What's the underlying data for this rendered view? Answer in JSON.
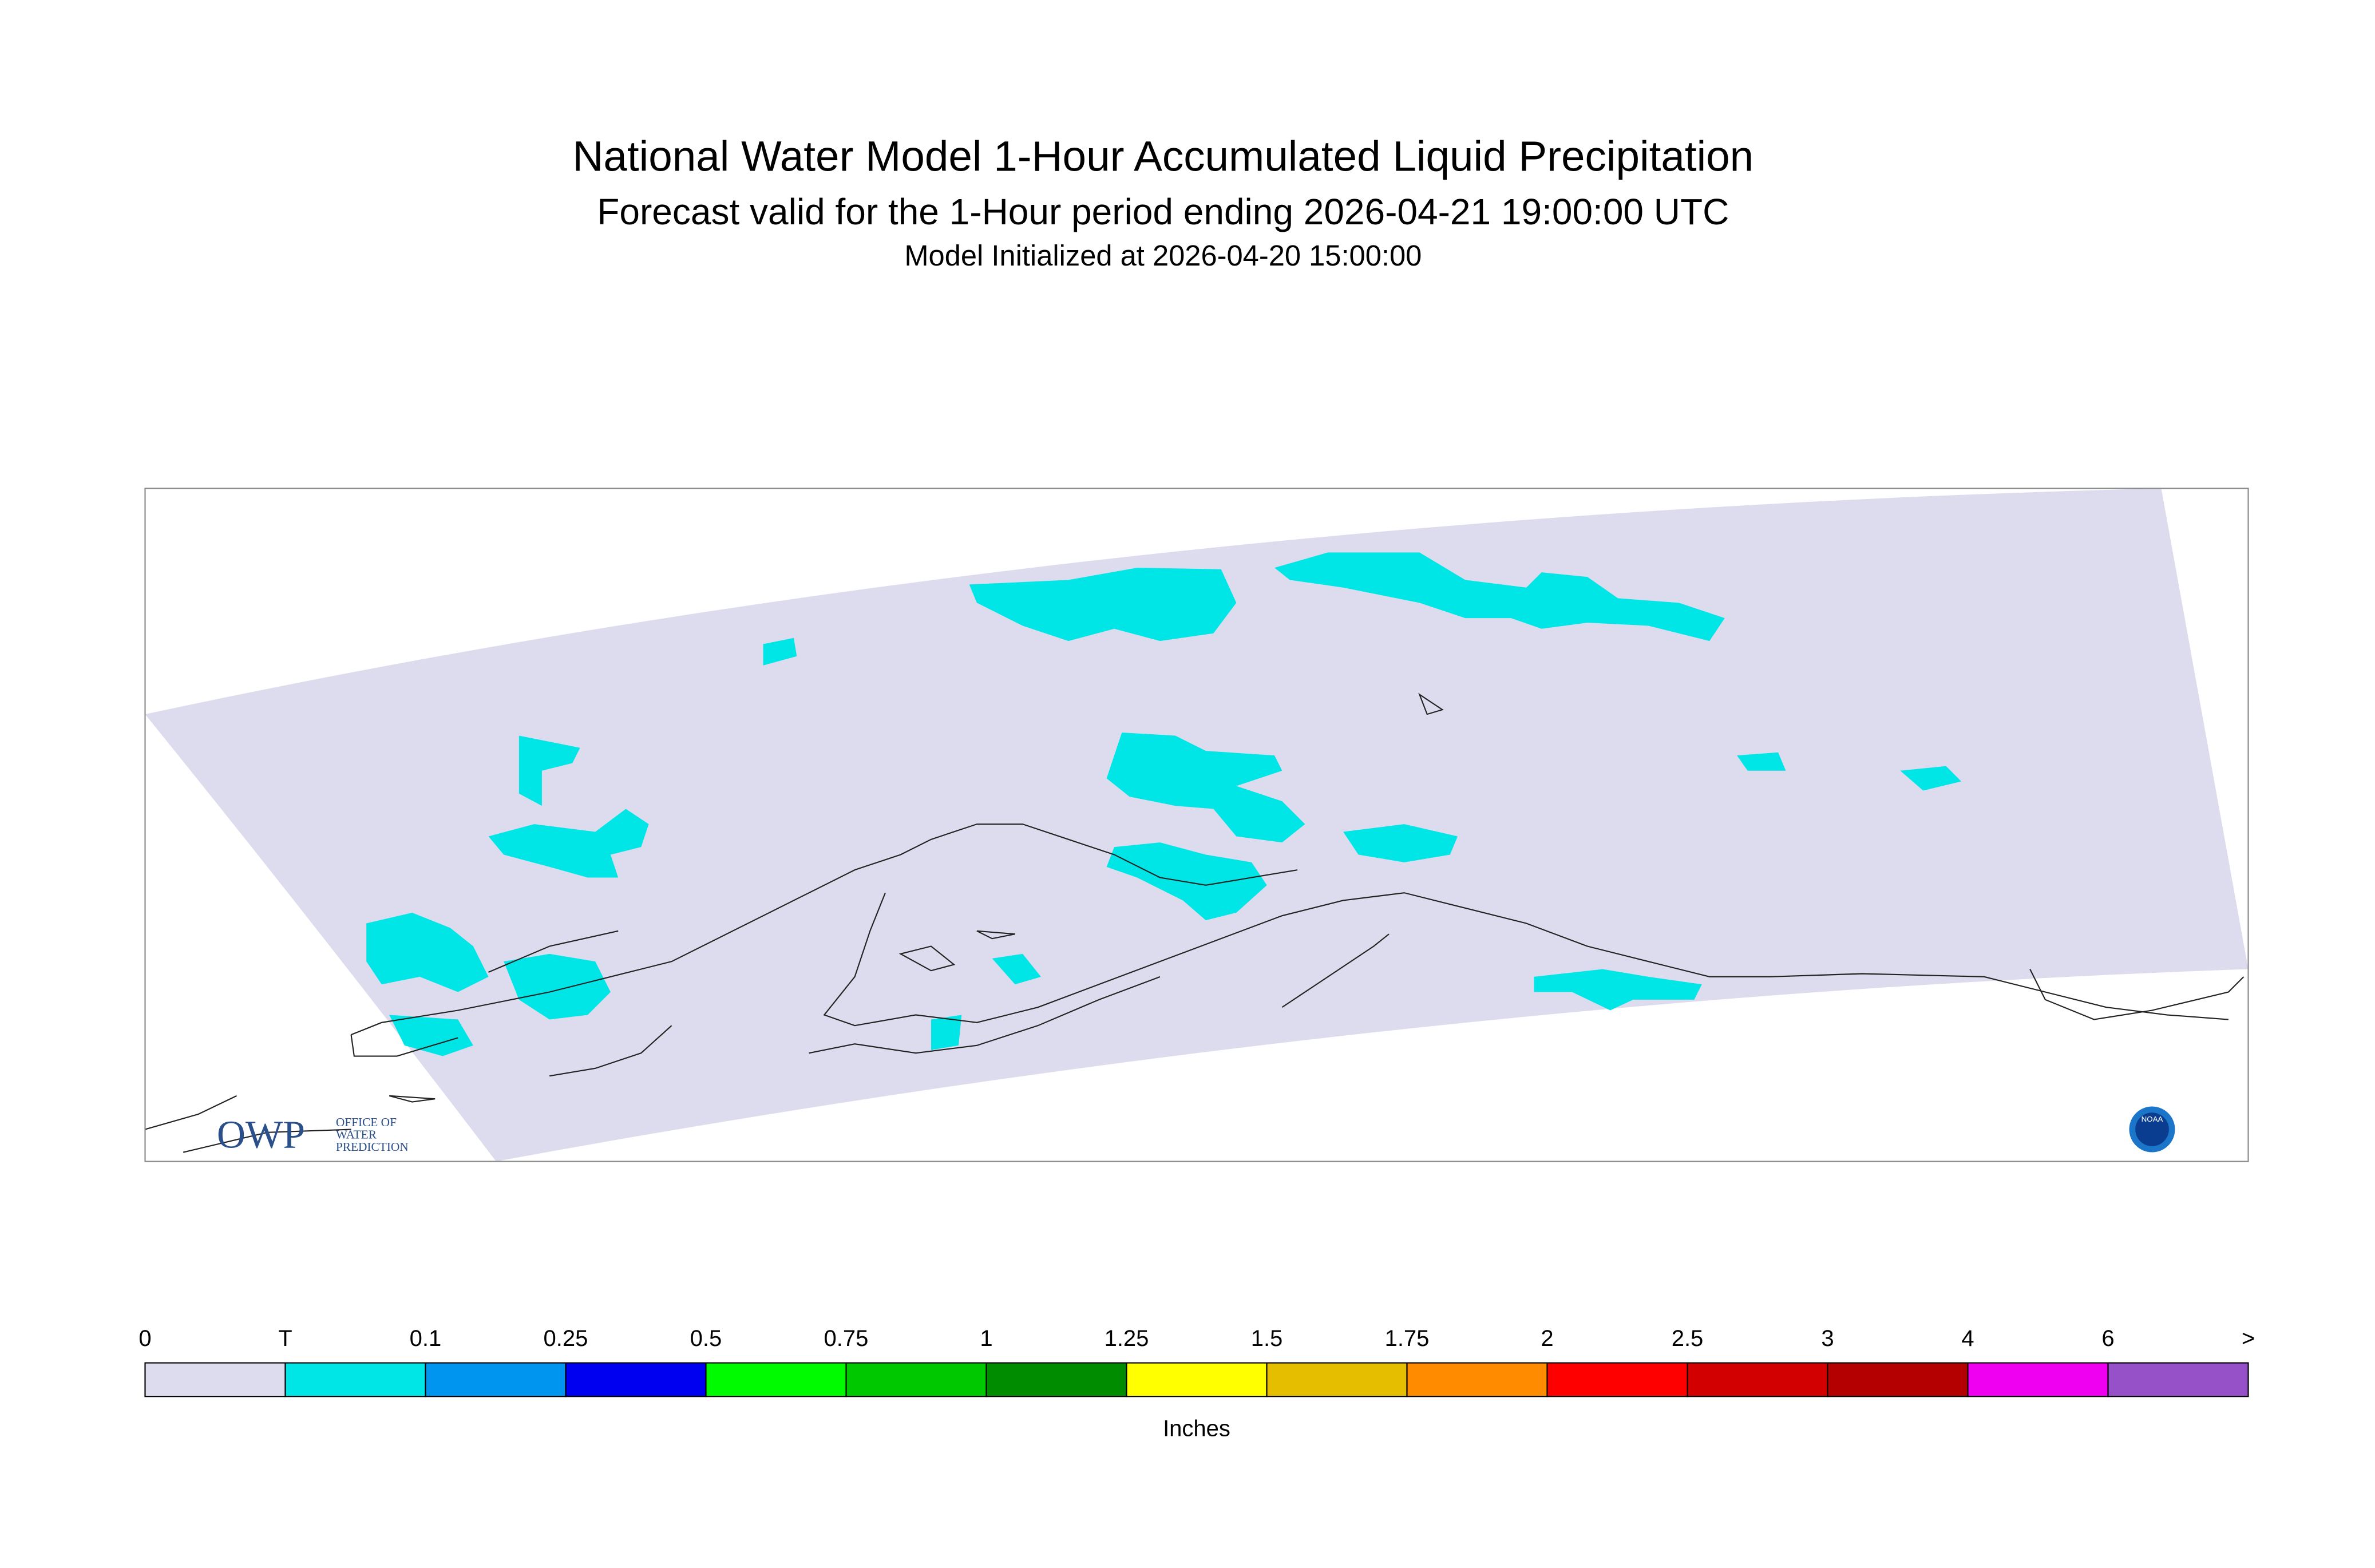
{
  "header": {
    "title": "National Water Model 1-Hour Accumulated Liquid Precipitation",
    "subtitle": "Forecast valid for the 1-Hour period ending 2026-04-21 19:00:00 UTC",
    "initialized": "Model Initialized at 2026-04-20 15:00:00"
  },
  "legend": {
    "labels": [
      "0",
      "T",
      "0.1",
      "0.25",
      "0.5",
      "0.75",
      "1",
      "1.25",
      "1.5",
      "1.75",
      "2",
      "2.5",
      "3",
      "4",
      "6",
      ">"
    ],
    "colors": [
      "#dcdcee",
      "#00e6e6",
      "#0096f0",
      "#0000f0",
      "#00fa00",
      "#00c800",
      "#008c00",
      "#ffff00",
      "#e6be00",
      "#ff8c00",
      "#ff0000",
      "#d20000",
      "#b40000",
      "#f000f0",
      "#9650c8"
    ],
    "unit": "Inches"
  },
  "logos": {
    "owp": "OWP",
    "owp_lines": [
      "OFFICE OF",
      "WATER",
      "PREDICTION"
    ],
    "noaa": "NOAA"
  }
}
